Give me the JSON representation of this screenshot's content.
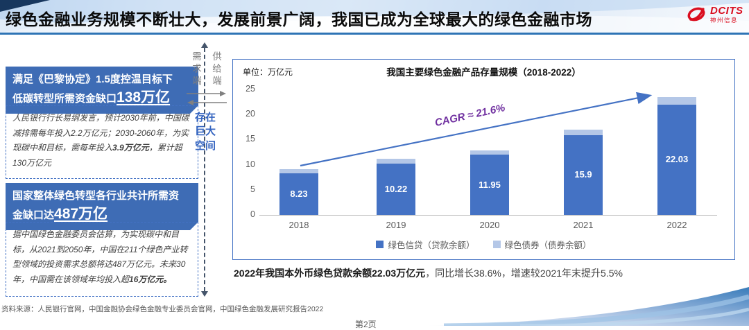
{
  "header": {
    "title": "绿色金融业务规模不断壮大，发展前景广阔，我国已成为全球最大的绿色金融市场",
    "logo_brand": "DCITS",
    "logo_sub": "神州信息"
  },
  "left_panel": {
    "box1": {
      "head_line1": "满足《巴黎协定》1.5度控温目标下",
      "head_line2_text": "低碳转型所需资金缺口",
      "head_line2_figure": "138万亿",
      "body_p1": "人民银行行长易纲发言，预计2030年前，中国碳减排需每年投入2.2万亿元；2030-2060年，为实现碳中和目标，需每年投入",
      "body_bold": "3.9万亿元",
      "body_p2": "，累计超130万亿元"
    },
    "box2": {
      "head_line1": "国家整体绿色转型各行业共计所需资",
      "head_line2_text": "金缺口达",
      "head_line2_figure": "487万亿",
      "body_p1": "据中国绿色金融委员会估算，为实现碳中和目标，从2021到2050年，中国在211个绿色产业转型领域的投资需求总额将达487万亿元。未来30年，中国需在该领域年均投入超",
      "body_bold": "16万亿元。"
    }
  },
  "divider": {
    "left_label": "需求端",
    "right_label": "供给端",
    "gap_lines": [
      "存在",
      "巨大",
      "空间"
    ]
  },
  "chart_data": {
    "type": "bar",
    "title": "我国主要绿色金融产品存量规模（2018-2022）",
    "unit_label": "单位：万亿元",
    "categories": [
      "2018",
      "2019",
      "2020",
      "2021",
      "2022"
    ],
    "series": [
      {
        "name": "绿色信贷（贷款余额）",
        "color": "#4472C4",
        "values": [
          8.23,
          10.22,
          11.95,
          15.9,
          22.03
        ],
        "show_labels": true
      },
      {
        "name": "绿色债券（债券余额）",
        "color": "#B4C7E7",
        "values": [
          0.9,
          1.0,
          0.9,
          1.1,
          1.5
        ],
        "show_labels": false
      }
    ],
    "ylim": [
      0,
      25
    ],
    "yticks": [
      0,
      5,
      10,
      15,
      20,
      25
    ],
    "legend_position": "bottom",
    "grid": false,
    "annotation": "CAGR ≈ 21.6%"
  },
  "summary": {
    "bold": "2022年我国本外币绿色贷款余额22.03万亿元",
    "rest": "，同比增长38.6%，增速较2021年末提升5.5%"
  },
  "footer": {
    "source": "资料来源：人民银行官网，中国金融协会绿色金融专业委员会官网，中国绿色金融发展研究报告2022",
    "page": "第2页"
  },
  "theme": {
    "accent_blue": "#4472C4",
    "light_blue": "#B4C7E7",
    "rule_blue": "#2E74B5",
    "cagr_purple": "#7030A0",
    "brand_red": "#DA0E1F"
  }
}
